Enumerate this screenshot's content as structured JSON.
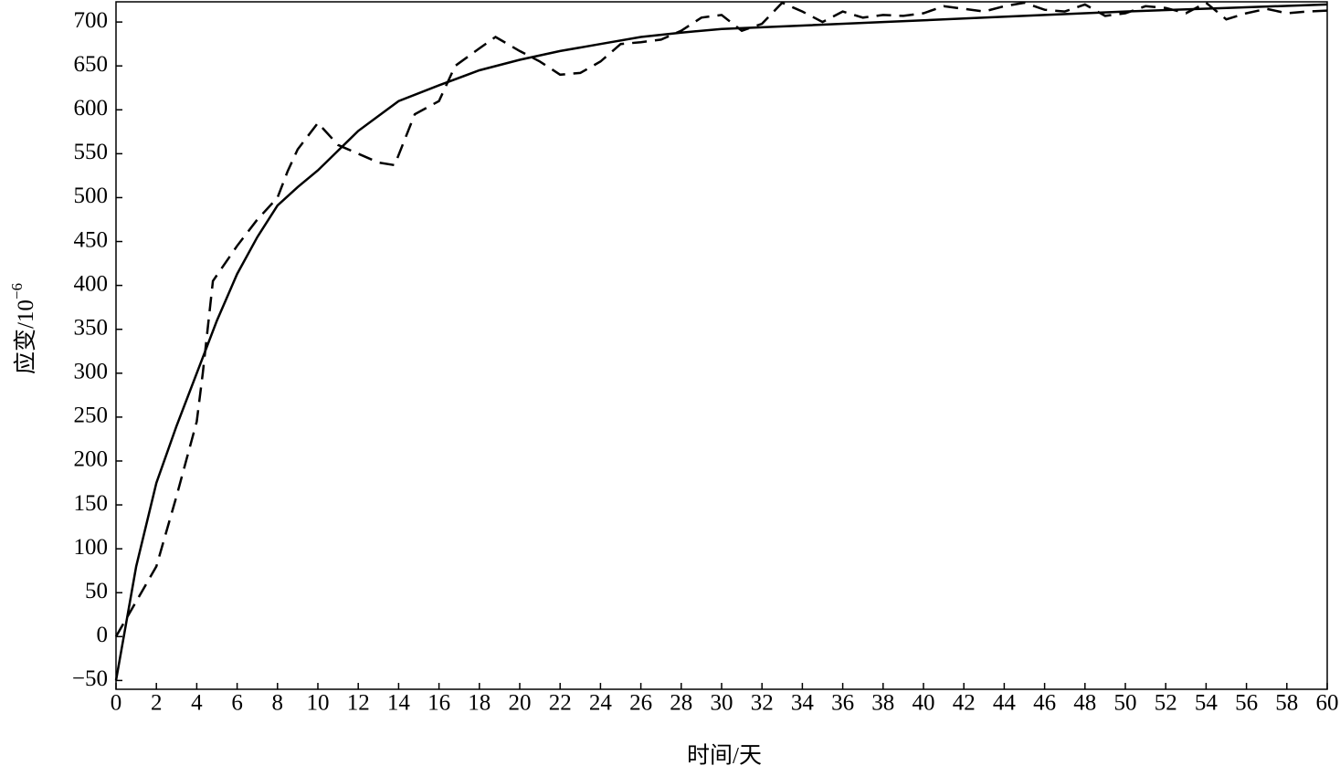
{
  "chart_data": {
    "type": "line",
    "x_label": "时间/天",
    "y_label": "应变/10",
    "y_label_exponent": "−6",
    "xlim": [
      0,
      60
    ],
    "xticks": [
      0,
      2,
      4,
      6,
      8,
      10,
      12,
      14,
      16,
      18,
      20,
      22,
      24,
      26,
      28,
      30,
      32,
      34,
      36,
      38,
      40,
      42,
      44,
      46,
      48,
      50,
      52,
      54,
      56,
      58,
      60
    ],
    "ylim": [
      -60,
      723
    ],
    "yticks": [
      {
        "value": -50,
        "label": "−50"
      },
      0,
      50,
      100,
      150,
      200,
      250,
      300,
      350,
      400,
      450,
      500,
      550,
      600,
      650,
      700
    ],
    "series": [
      {
        "color": "#000000",
        "dash": "solid",
        "x": [
          0,
          1,
          2,
          3,
          4,
          5,
          6,
          7,
          8,
          9,
          10,
          12,
          14,
          16,
          18,
          20,
          22,
          24,
          26,
          28,
          30,
          34,
          38,
          42,
          46,
          50,
          55,
          60
        ],
        "values": [
          -50,
          80,
          175,
          240,
          300,
          360,
          413,
          455,
          491,
          512,
          531,
          576,
          610,
          628,
          645,
          657,
          667,
          675,
          683,
          688,
          692,
          696,
          700,
          704,
          708,
          712,
          716,
          720
        ]
      },
      {
        "color": "#000000",
        "dash": "dashed",
        "x": [
          0,
          1,
          2,
          3,
          4,
          4.3,
          4.8,
          6,
          7,
          8,
          8.5,
          9,
          10,
          11,
          12,
          13,
          13.8,
          14.8,
          16,
          16.8,
          18,
          18.8,
          20,
          21,
          22,
          23,
          24,
          25,
          26,
          27,
          28,
          29,
          30,
          31,
          32,
          33,
          34,
          35,
          36,
          37,
          38,
          39,
          40,
          41,
          42,
          43,
          44,
          45,
          46,
          47,
          48,
          49,
          50,
          51,
          52,
          53,
          54,
          55,
          56,
          57,
          58,
          59,
          60
        ],
        "values": [
          0,
          40,
          80,
          160,
          245,
          300,
          405,
          445,
          475,
          500,
          530,
          555,
          585,
          560,
          550,
          540,
          537,
          595,
          610,
          650,
          670,
          683,
          667,
          655,
          640,
          642,
          655,
          675,
          677,
          680,
          690,
          705,
          708,
          690,
          698,
          722,
          712,
          700,
          712,
          705,
          708,
          707,
          710,
          718,
          715,
          712,
          718,
          722,
          714,
          712,
          720,
          707,
          710,
          718,
          716,
          710,
          722,
          703,
          710,
          715,
          710,
          712,
          713
        ]
      }
    ]
  }
}
